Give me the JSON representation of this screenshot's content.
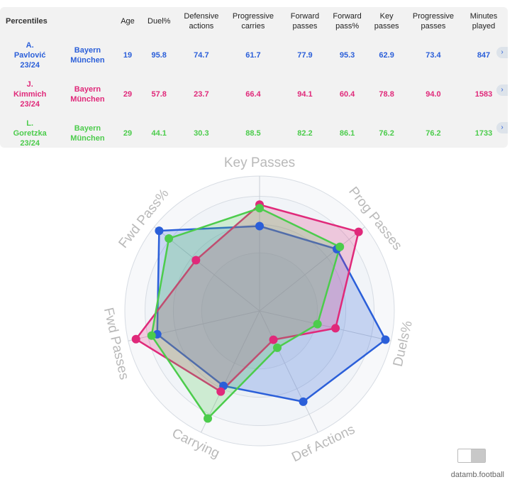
{
  "table": {
    "headers": [
      "Percentiles",
      "",
      "Age",
      "Duel%",
      "Defensive\nactions",
      "Progressive\ncarries",
      "Forward\npasses",
      "Forward\npass%",
      "Key\npasses",
      "Progressive\npasses",
      "Minutes\nplayed"
    ],
    "rows": [
      {
        "player": "A.\nPavlović\n23/24",
        "team": "Bayern\nMünchen",
        "age": "19",
        "duel": "95.8",
        "def": "74.7",
        "carries": "61.7",
        "fwd": "77.9",
        "fwdpct": "95.3",
        "key": "62.9",
        "prog": "73.4",
        "minutes": "847",
        "color": "#2b5fd9"
      },
      {
        "player": "J.\nKimmich\n23/24",
        "team": "Bayern\nMünchen",
        "age": "29",
        "duel": "57.8",
        "def": "23.7",
        "carries": "66.4",
        "fwd": "94.1",
        "fwdpct": "60.4",
        "key": "78.8",
        "prog": "94.0",
        "minutes": "1583",
        "color": "#e0297a"
      },
      {
        "player": "L.\nGoretzka\n23/24",
        "team": "Bayern\nMünchen",
        "age": "29",
        "duel": "44.1",
        "def": "30.3",
        "carries": "88.5",
        "fwd": "82.2",
        "fwdpct": "86.1",
        "key": "76.2",
        "prog": "76.2",
        "minutes": "1733",
        "color": "#4ccc4c"
      }
    ],
    "arrow": "›"
  },
  "chart_data": {
    "type": "radar",
    "axes": [
      "Key Passes",
      "Prog Passes",
      "Duels%",
      "Def Actions",
      "Carrying",
      "Fwd Passes",
      "Fwd Pass%"
    ],
    "range": [
      0,
      100
    ],
    "series": [
      {
        "name": "A. Pavlović 23/24",
        "color": "#2b5fd9",
        "values": [
          62.9,
          73.4,
          95.8,
          74.7,
          61.7,
          77.9,
          95.3
        ]
      },
      {
        "name": "J. Kimmich 23/24",
        "color": "#e0297a",
        "values": [
          78.8,
          94.0,
          57.8,
          23.7,
          66.4,
          94.1,
          60.4
        ]
      },
      {
        "name": "L. Goretzka 23/24",
        "color": "#4ccc4c",
        "values": [
          76.2,
          76.2,
          44.1,
          30.3,
          88.5,
          82.2,
          86.1
        ]
      }
    ]
  },
  "footer": {
    "brand": "datamb.football"
  }
}
